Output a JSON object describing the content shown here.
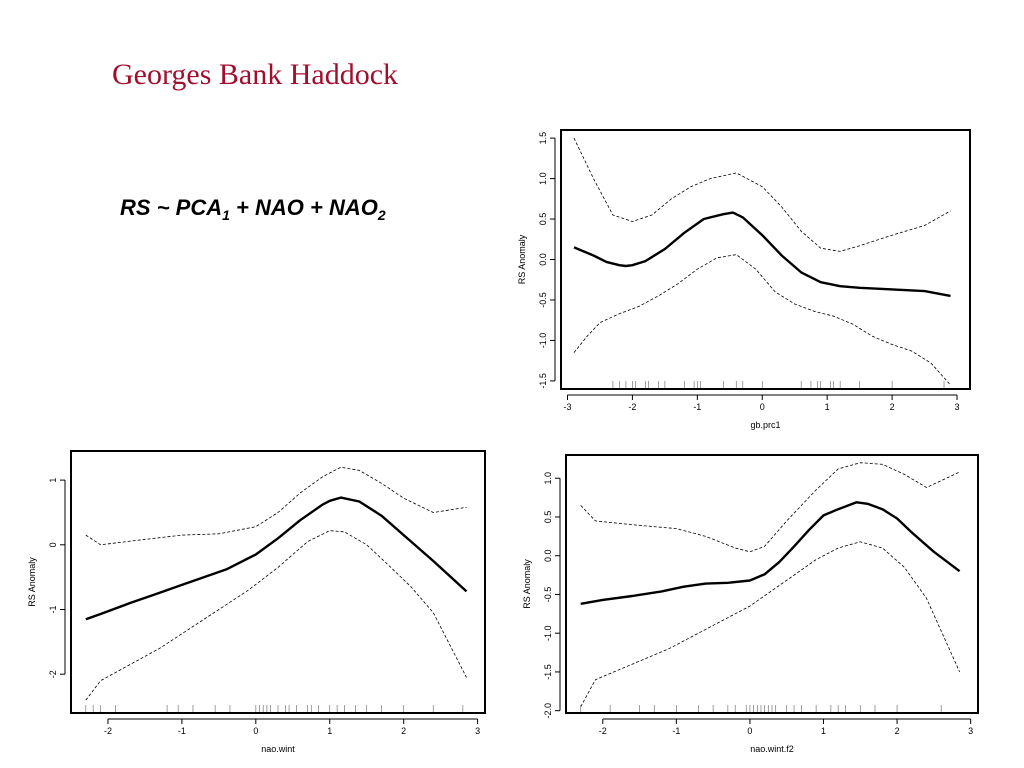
{
  "slide": {
    "title": "Georges Bank Haddock",
    "formula": {
      "lhs": "RS",
      "tilde": "~",
      "t1": "PCA",
      "t1_sub": "1",
      "plus1": "+",
      "t2": "NAO",
      "plus2": "+",
      "t3": "NAO",
      "t3_sub": "2"
    }
  },
  "chart_data": [
    {
      "type": "line",
      "xlabel": "gb.prc1",
      "ylabel": "RS Anomaly",
      "xlim": [
        -3.1,
        3.2
      ],
      "ylim": [
        -1.6,
        1.6
      ],
      "xticks": [
        -3,
        -2,
        -1,
        0,
        1,
        2,
        3
      ],
      "yticks": [
        -1.5,
        -1.0,
        -0.5,
        0.0,
        0.5,
        1.0,
        1.5
      ],
      "ytick_labels": [
        "-1.5",
        "-1.0",
        "-0.5",
        "0.0",
        "0.5",
        "1.0",
        "1.5"
      ],
      "yticks_rotated": true,
      "series": [
        {
          "role": "fit",
          "x": [
            -2.9,
            -2.6,
            -2.4,
            -2.2,
            -2.1,
            -2.0,
            -1.8,
            -1.5,
            -1.2,
            -0.9,
            -0.6,
            -0.45,
            -0.3,
            0.0,
            0.3,
            0.6,
            0.9,
            1.2,
            1.5,
            2.0,
            2.5,
            2.9
          ],
          "y": [
            0.15,
            0.05,
            -0.03,
            -0.07,
            -0.08,
            -0.07,
            -0.02,
            0.13,
            0.33,
            0.5,
            0.56,
            0.58,
            0.52,
            0.3,
            0.05,
            -0.16,
            -0.28,
            -0.33,
            -0.35,
            -0.37,
            -0.39,
            -0.45
          ]
        },
        {
          "role": "upper",
          "x": [
            -2.9,
            -2.6,
            -2.3,
            -2.0,
            -1.7,
            -1.4,
            -1.1,
            -0.8,
            -0.4,
            0.0,
            0.3,
            0.6,
            0.9,
            1.2,
            1.5,
            2.0,
            2.5,
            2.9
          ],
          "y": [
            1.5,
            1.0,
            0.55,
            0.47,
            0.55,
            0.75,
            0.9,
            1.0,
            1.07,
            0.9,
            0.65,
            0.35,
            0.14,
            0.1,
            0.17,
            0.3,
            0.42,
            0.6
          ]
        },
        {
          "role": "lower",
          "x": [
            -2.9,
            -2.7,
            -2.5,
            -2.2,
            -1.9,
            -1.6,
            -1.3,
            -1.0,
            -0.7,
            -0.4,
            -0.1,
            0.2,
            0.5,
            0.8,
            1.1,
            1.4,
            1.7,
            2.0,
            2.3,
            2.6,
            2.9
          ],
          "y": [
            -1.15,
            -0.95,
            -0.78,
            -0.67,
            -0.58,
            -0.45,
            -0.3,
            -0.12,
            0.02,
            0.06,
            -0.12,
            -0.4,
            -0.55,
            -0.64,
            -0.7,
            -0.8,
            -0.95,
            -1.05,
            -1.13,
            -1.28,
            -1.55
          ]
        }
      ],
      "rug": [
        -2.3,
        -2.2,
        -2.1,
        -2.0,
        -1.95,
        -1.8,
        -1.75,
        -1.6,
        -1.5,
        -1.2,
        -1.05,
        -1.0,
        -0.95,
        -0.6,
        -0.4,
        -0.3,
        0.0,
        0.6,
        0.75,
        0.85,
        0.9,
        1.05,
        1.1,
        1.2,
        1.5,
        2.0,
        2.8
      ]
    },
    {
      "type": "line",
      "xlabel": "nao.wint",
      "ylabel": "RS Anomaly",
      "xlim": [
        -2.5,
        3.1
      ],
      "ylim": [
        -2.6,
        1.45
      ],
      "xticks": [
        -2,
        -1,
        0,
        1,
        2,
        3
      ],
      "yticks": [
        -2,
        -1,
        0,
        1
      ],
      "ytick_labels": [
        "-2",
        "-1",
        "0",
        "1"
      ],
      "yticks_rotated": true,
      "series": [
        {
          "role": "fit",
          "x": [
            -2.3,
            -2.1,
            -1.7,
            -1.3,
            -1.0,
            -0.7,
            -0.4,
            0.0,
            0.3,
            0.6,
            0.9,
            1.0,
            1.15,
            1.4,
            1.7,
            2.0,
            2.4,
            2.85
          ],
          "y": [
            -1.15,
            -1.07,
            -0.9,
            -0.74,
            -0.62,
            -0.5,
            -0.38,
            -0.15,
            0.1,
            0.38,
            0.62,
            0.68,
            0.73,
            0.67,
            0.45,
            0.15,
            -0.25,
            -0.72
          ]
        },
        {
          "role": "upper",
          "x": [
            -2.3,
            -2.1,
            -1.6,
            -1.0,
            -0.5,
            0.0,
            0.3,
            0.6,
            0.9,
            1.15,
            1.4,
            1.7,
            2.0,
            2.4,
            2.85
          ],
          "y": [
            0.15,
            0.0,
            0.07,
            0.15,
            0.17,
            0.28,
            0.5,
            0.8,
            1.05,
            1.2,
            1.15,
            0.95,
            0.72,
            0.5,
            0.58
          ]
        },
        {
          "role": "lower",
          "x": [
            -2.3,
            -2.1,
            -1.7,
            -1.3,
            -0.9,
            -0.5,
            -0.1,
            0.3,
            0.7,
            1.0,
            1.2,
            1.5,
            1.8,
            2.1,
            2.4,
            2.85
          ],
          "y": [
            -2.4,
            -2.1,
            -1.85,
            -1.6,
            -1.3,
            -1.0,
            -0.7,
            -0.35,
            0.05,
            0.22,
            0.2,
            0.0,
            -0.32,
            -0.65,
            -1.05,
            -2.05
          ]
        }
      ],
      "rug": [
        -2.3,
        -2.2,
        -2.1,
        -1.9,
        -1.2,
        -1.05,
        -0.85,
        -0.55,
        -0.35,
        0.0,
        0.05,
        0.1,
        0.15,
        0.2,
        0.3,
        0.4,
        0.45,
        0.55,
        0.7,
        0.75,
        0.85,
        1.0,
        1.1,
        1.2,
        1.35,
        1.5,
        1.7,
        2.0,
        2.4,
        2.8
      ]
    },
    {
      "type": "line",
      "xlabel": "nao.wint.f2",
      "ylabel": "RS Anomaly",
      "xlim": [
        -2.5,
        3.1
      ],
      "ylim": [
        -2.03,
        1.3
      ],
      "xticks": [
        -2,
        -1,
        0,
        1,
        2,
        3
      ],
      "yticks": [
        -2.0,
        -1.5,
        -1.0,
        -0.5,
        0.0,
        0.5,
        1.0
      ],
      "ytick_labels": [
        "-2.0",
        "-1.5",
        "-1.0",
        "-0.5",
        "0.0",
        "0.5",
        "1.0"
      ],
      "yticks_rotated": true,
      "series": [
        {
          "role": "fit",
          "x": [
            -2.3,
            -2.0,
            -1.6,
            -1.2,
            -0.9,
            -0.6,
            -0.3,
            0.0,
            0.2,
            0.4,
            0.6,
            0.8,
            1.0,
            1.2,
            1.45,
            1.6,
            1.8,
            2.0,
            2.2,
            2.5,
            2.85
          ],
          "y": [
            -0.62,
            -0.57,
            -0.52,
            -0.46,
            -0.4,
            -0.36,
            -0.35,
            -0.32,
            -0.24,
            -0.08,
            0.12,
            0.33,
            0.52,
            0.6,
            0.69,
            0.67,
            0.6,
            0.48,
            0.3,
            0.05,
            -0.2
          ]
        },
        {
          "role": "upper",
          "x": [
            -2.3,
            -2.1,
            -1.6,
            -1.0,
            -0.6,
            -0.2,
            0.0,
            0.2,
            0.5,
            0.9,
            1.2,
            1.5,
            1.8,
            2.1,
            2.4,
            2.85
          ],
          "y": [
            0.65,
            0.45,
            0.4,
            0.35,
            0.25,
            0.1,
            0.05,
            0.12,
            0.45,
            0.85,
            1.12,
            1.2,
            1.18,
            1.05,
            0.88,
            1.08
          ]
        },
        {
          "role": "lower",
          "x": [
            -2.3,
            -2.1,
            -1.6,
            -1.1,
            -0.6,
            -0.2,
            0.0,
            0.3,
            0.6,
            0.9,
            1.2,
            1.5,
            1.8,
            2.1,
            2.4,
            2.85
          ],
          "y": [
            -1.95,
            -1.6,
            -1.4,
            -1.2,
            -0.95,
            -0.75,
            -0.65,
            -0.45,
            -0.25,
            -0.05,
            0.1,
            0.18,
            0.1,
            -0.15,
            -0.55,
            -1.5
          ]
        }
      ],
      "rug": [
        -2.3,
        -1.9,
        -1.5,
        -1.3,
        -1.0,
        -0.7,
        -0.5,
        -0.3,
        -0.2,
        -0.05,
        0.0,
        0.05,
        0.1,
        0.15,
        0.2,
        0.25,
        0.3,
        0.35,
        0.5,
        0.6,
        0.7,
        0.9,
        1.1,
        1.2,
        1.3,
        1.5,
        1.7,
        2.0,
        2.6
      ]
    }
  ]
}
